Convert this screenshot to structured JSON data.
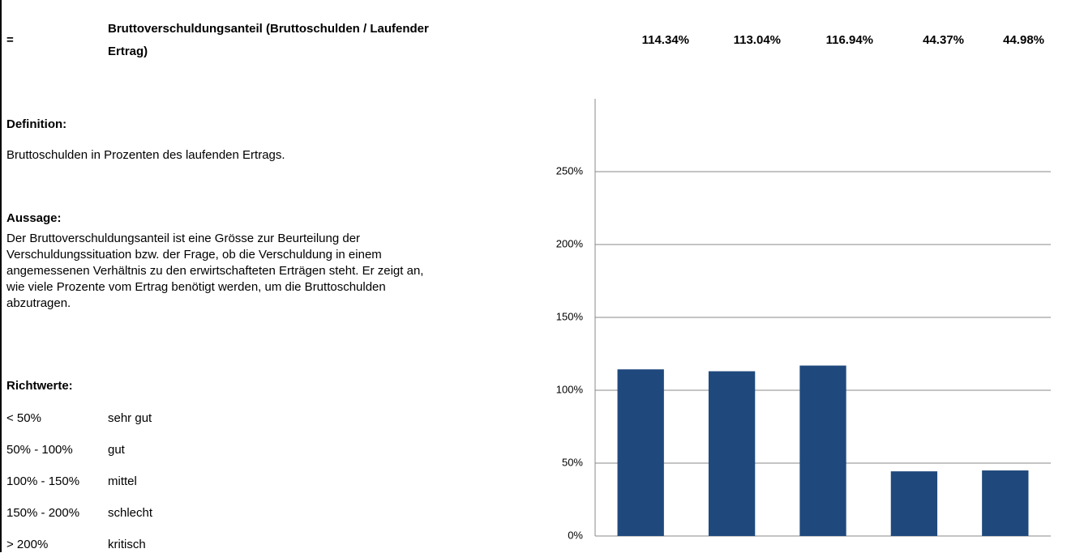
{
  "header": {
    "sign": "=",
    "title_lines": [
      "Bruttoverschuldungsanteil (Bruttoschulden / Laufender",
      "Ertrag)"
    ],
    "values": [
      "114.34%",
      "113.04%",
      "116.94%",
      "44.37%",
      "44.98%"
    ]
  },
  "definition": {
    "heading": "Definition:",
    "text": "Bruttoschulden in Prozenten des laufenden Ertrags."
  },
  "statement": {
    "heading": "Aussage:",
    "lines": [
      "Der Bruttoverschuldungsanteil ist eine Grösse zur Beurteilung der",
      "Verschuldungssituation bzw. der Frage, ob die Verschuldung in einem",
      "angemessenen Verhältnis zu den erwirtschafteten Erträgen steht. Er zeigt an,",
      "wie viele Prozente vom Ertrag benötigt werden, um die Bruttoschulden",
      "abzutragen."
    ]
  },
  "guidelines": {
    "heading": "Richtwerte:",
    "rows": [
      [
        "< 50%",
        "sehr gut"
      ],
      [
        "50% - 100%",
        "gut"
      ],
      [
        "100% - 150%",
        "mittel"
      ],
      [
        "150% - 200%",
        "schlecht"
      ],
      [
        "> 200%",
        "kritisch"
      ]
    ]
  },
  "chart_data": {
    "type": "bar",
    "categories": [
      null,
      null,
      null,
      null,
      null
    ],
    "values": [
      114.34,
      113.04,
      116.94,
      44.37,
      44.98
    ],
    "color": "#1f497d",
    "ylim": [
      0,
      300
    ],
    "yticks": [
      {
        "value": 0,
        "label": "0%"
      },
      {
        "value": 50,
        "label": "50%"
      },
      {
        "value": 100,
        "label": "100%"
      },
      {
        "value": 150,
        "label": "150%"
      },
      {
        "value": 200,
        "label": "200%"
      },
      {
        "value": 250,
        "label": "250%"
      }
    ],
    "grid": true
  }
}
